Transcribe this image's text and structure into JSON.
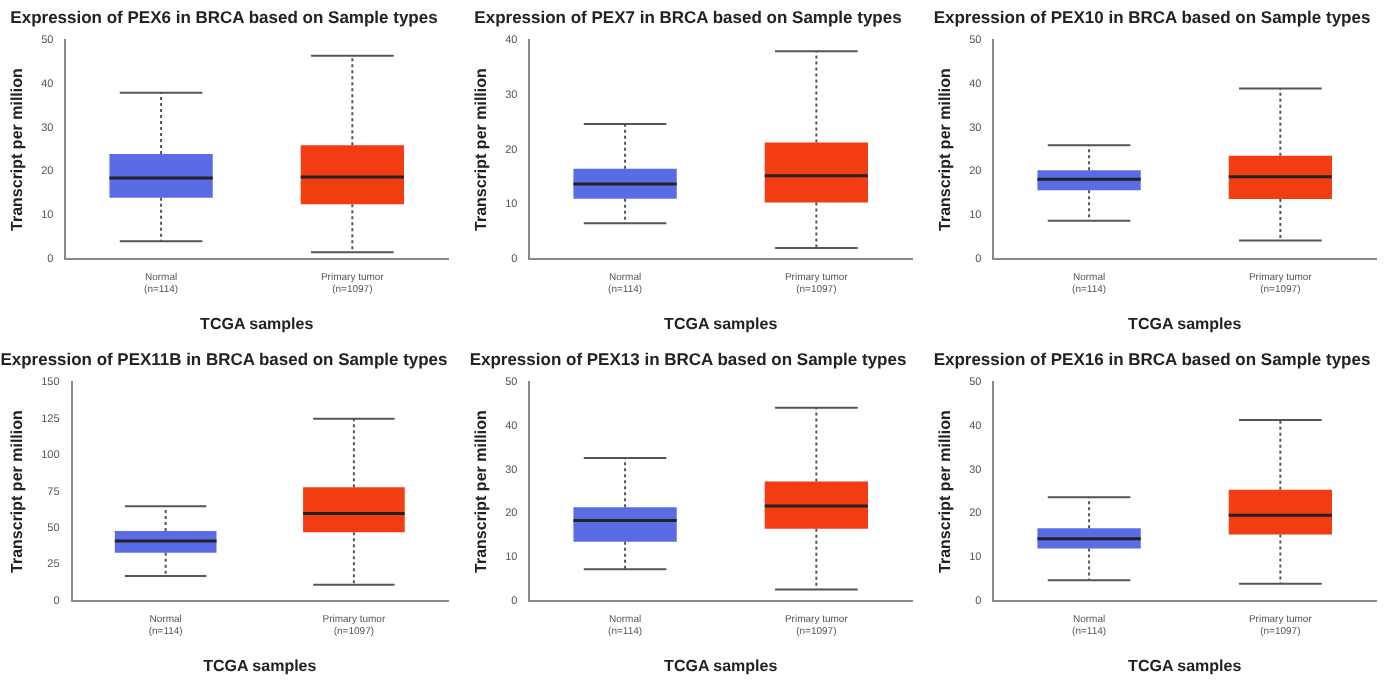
{
  "chart_data": [
    {
      "type": "box",
      "title": "Expression of PEX6 in BRCA based on Sample types",
      "xlabel": "TCGA samples",
      "ylabel": "Transcript per million",
      "categories": [
        "Normal\n(n=114)",
        "Primary tumor\n(n=1097)"
      ],
      "colors": [
        "#5a6be6",
        "#f23c12"
      ],
      "ylim": [
        0,
        50
      ],
      "yticks": [
        0,
        10,
        20,
        30,
        40,
        50
      ],
      "grid": false,
      "legend": false,
      "boxes": [
        {
          "low": 4,
          "q1": 14,
          "median": 18.5,
          "q3": 24,
          "high": 38
        },
        {
          "low": 1.5,
          "q1": 12.5,
          "median": 18.7,
          "q3": 26,
          "high": 46.5
        }
      ]
    },
    {
      "type": "box",
      "title": "Expression of PEX7 in BRCA based on Sample types",
      "xlabel": "TCGA samples",
      "ylabel": "Transcript per million",
      "categories": [
        "Normal\n(n=114)",
        "Primary tumor\n(n=1097)"
      ],
      "colors": [
        "#5a6be6",
        "#f23c12"
      ],
      "ylim": [
        0,
        40
      ],
      "yticks": [
        0,
        10,
        20,
        30,
        40
      ],
      "grid": false,
      "legend": false,
      "boxes": [
        {
          "low": 6.5,
          "q1": 11,
          "median": 13.7,
          "q3": 16.5,
          "high": 24.7
        },
        {
          "low": 2,
          "q1": 10.3,
          "median": 15.2,
          "q3": 21.3,
          "high": 38
        }
      ]
    },
    {
      "type": "box",
      "title": "Expression of PEX10 in BRCA based on Sample types",
      "xlabel": "TCGA samples",
      "ylabel": "Transcript per million",
      "categories": [
        "Normal\n(n=114)",
        "Primary tumor\n(n=1097)"
      ],
      "colors": [
        "#5a6be6",
        "#f23c12"
      ],
      "ylim": [
        0,
        50
      ],
      "yticks": [
        0,
        10,
        20,
        30,
        40,
        50
      ],
      "grid": false,
      "legend": false,
      "boxes": [
        {
          "low": 8.7,
          "q1": 15.7,
          "median": 18.2,
          "q3": 20.3,
          "high": 26
        },
        {
          "low": 4.2,
          "q1": 13.7,
          "median": 18.8,
          "q3": 23.6,
          "high": 39
        }
      ]
    },
    {
      "type": "box",
      "title": "Expression of PEX11B in BRCA based on Sample types",
      "xlabel": "TCGA samples",
      "ylabel": "Transcript per million",
      "categories": [
        "Normal\n(n=114)",
        "Primary tumor\n(n=1097)"
      ],
      "colors": [
        "#5a6be6",
        "#f23c12"
      ],
      "ylim": [
        0,
        150
      ],
      "yticks": [
        0,
        25,
        50,
        75,
        100,
        125,
        150
      ],
      "grid": false,
      "legend": false,
      "boxes": [
        {
          "low": 17,
          "q1": 33,
          "median": 41,
          "q3": 48,
          "high": 65
        },
        {
          "low": 11,
          "q1": 47,
          "median": 60,
          "q3": 78,
          "high": 125
        }
      ]
    },
    {
      "type": "box",
      "title": "Expression of PEX13 in BRCA based on Sample types",
      "xlabel": "TCGA samples",
      "ylabel": "Transcript per million",
      "categories": [
        "Normal\n(n=114)",
        "Primary tumor\n(n=1097)"
      ],
      "colors": [
        "#5a6be6",
        "#f23c12"
      ],
      "ylim": [
        0,
        50
      ],
      "yticks": [
        0,
        10,
        20,
        30,
        40,
        50
      ],
      "grid": false,
      "legend": false,
      "boxes": [
        {
          "low": 7.2,
          "q1": 13.5,
          "median": 18.4,
          "q3": 21.4,
          "high": 32.7
        },
        {
          "low": 2.6,
          "q1": 16.5,
          "median": 21.7,
          "q3": 27.3,
          "high": 44.2
        }
      ]
    },
    {
      "type": "box",
      "title": "Expression of PEX16 in BRCA based on Sample types",
      "xlabel": "TCGA samples",
      "ylabel": "Transcript per million",
      "categories": [
        "Normal\n(n=114)",
        "Primary tumor\n(n=1097)"
      ],
      "colors": [
        "#5a6be6",
        "#f23c12"
      ],
      "ylim": [
        0,
        50
      ],
      "yticks": [
        0,
        10,
        20,
        30,
        40,
        50
      ],
      "grid": false,
      "legend": false,
      "boxes": [
        {
          "low": 4.7,
          "q1": 12,
          "median": 14.2,
          "q3": 16.6,
          "high": 23.7
        },
        {
          "low": 3.9,
          "q1": 15.2,
          "median": 19.6,
          "q3": 25.4,
          "high": 41.4
        }
      ]
    }
  ]
}
